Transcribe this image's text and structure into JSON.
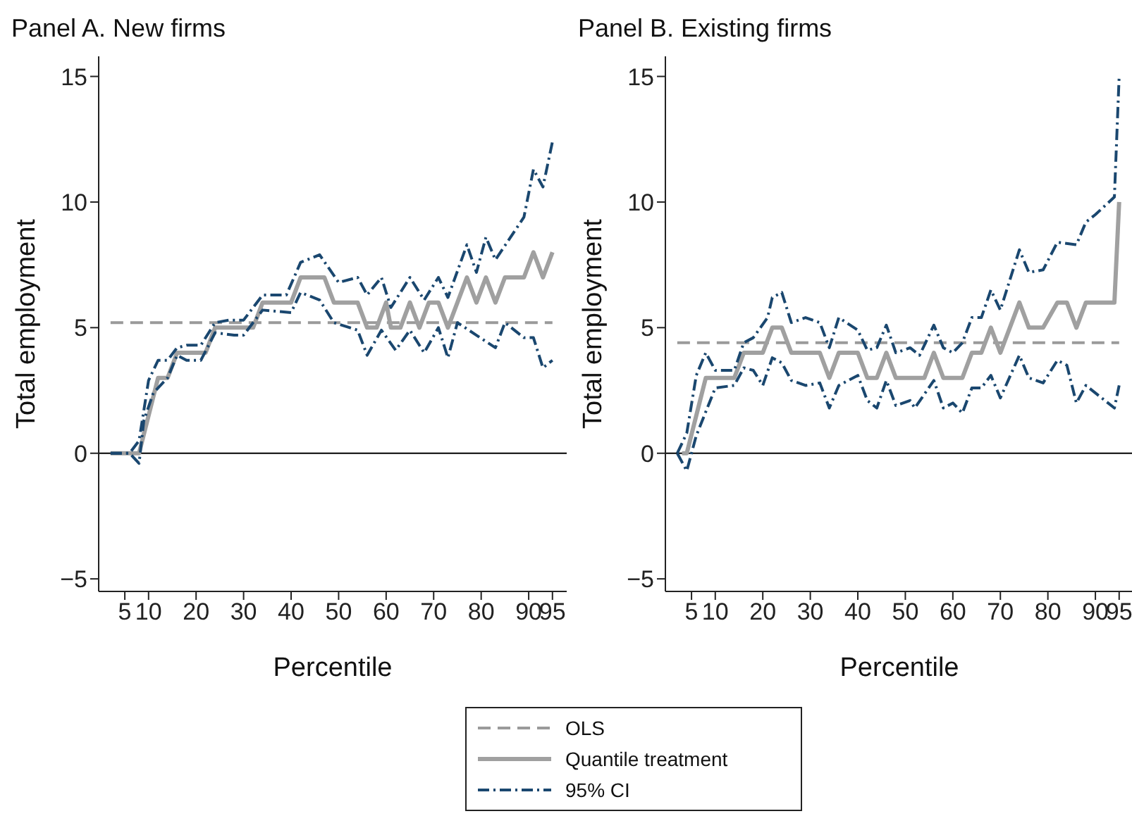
{
  "chart_data": [
    {
      "type": "line",
      "title": "Panel A. New firms",
      "xlabel": "Percentile",
      "ylabel": "Total employment",
      "xlim": [
        -0.5,
        98
      ],
      "xticks": [
        5,
        10,
        20,
        30,
        40,
        50,
        60,
        70,
        80,
        90,
        95
      ],
      "ylim": [
        -5.5,
        15.8
      ],
      "yticks": [
        -5,
        0,
        5,
        10,
        15
      ],
      "legend": "bottom",
      "marker": "none",
      "ref_lines": [
        {
          "axis": "y",
          "value": 0,
          "color": "#000000",
          "line_style": "solid"
        }
      ],
      "series": [
        {
          "name": "OLS",
          "color": "#9a9a9a",
          "line_style": "dashed",
          "x": [
            2,
            95
          ],
          "values": [
            5.2,
            5.2
          ]
        },
        {
          "name": "Quantile treatment",
          "color": "#a0a0a0",
          "line_style": "solid",
          "x": [
            2,
            8,
            12,
            14,
            16,
            22,
            24,
            32,
            34,
            40,
            42,
            47,
            49,
            54,
            56,
            58,
            60,
            61,
            63,
            65,
            67,
            69,
            71,
            73,
            77,
            79,
            81,
            83,
            85,
            89,
            91,
            93,
            95
          ],
          "values": [
            0,
            0,
            3,
            3,
            4,
            4,
            5,
            5,
            6,
            6,
            7,
            7,
            6,
            6,
            5,
            5,
            6,
            5,
            5,
            6,
            5,
            6,
            6,
            5,
            7,
            6,
            7,
            6,
            7,
            7,
            8,
            7,
            8
          ]
        },
        {
          "name": "95% CI",
          "color": "#1a476f",
          "line_style": "dashdot",
          "x": [
            2,
            6,
            8,
            10,
            12,
            14,
            16,
            18,
            21,
            24,
            27,
            30,
            34,
            39,
            42,
            46,
            50,
            54,
            56,
            59,
            61,
            65,
            68,
            71,
            73,
            77,
            79,
            81,
            83,
            89,
            91,
            93,
            95
          ],
          "values": [
            0,
            0,
            0.5,
            2.9,
            3.7,
            3.7,
            4.2,
            4.3,
            4.3,
            5.2,
            5.3,
            5.3,
            6.3,
            6.3,
            7.6,
            7.9,
            6.8,
            7.0,
            6.3,
            7.0,
            5.8,
            7.0,
            6.1,
            7.0,
            6.2,
            8.3,
            7.2,
            8.6,
            7.7,
            9.4,
            11.3,
            10.6,
            12.4
          ]
        },
        {
          "color": "#1a476f",
          "line_style": "dashdot",
          "x": [
            2,
            6,
            8,
            9,
            11,
            14,
            16,
            18,
            21,
            24,
            28,
            30,
            34,
            40,
            42,
            46,
            49,
            54,
            56,
            59,
            62,
            65,
            68,
            71,
            73,
            75,
            79,
            83,
            85,
            89,
            91,
            93,
            95
          ],
          "values": [
            0,
            0,
            -0.4,
            1.3,
            2.4,
            3.0,
            3.9,
            3.7,
            3.7,
            4.8,
            4.7,
            4.7,
            5.7,
            5.6,
            6.4,
            6.1,
            5.2,
            4.9,
            3.9,
            4.9,
            4.1,
            4.9,
            4.0,
            5.0,
            3.8,
            5.2,
            4.7,
            4.2,
            5.2,
            4.6,
            4.6,
            3.4,
            3.7
          ]
        }
      ]
    },
    {
      "type": "line",
      "title": "Panel B. Existing firms",
      "xlabel": "Percentile",
      "ylabel": "Total employment",
      "xlim": [
        -0.5,
        98
      ],
      "xticks": [
        5,
        10,
        20,
        30,
        40,
        50,
        60,
        70,
        80,
        90,
        95
      ],
      "ylim": [
        -5.5,
        15.8
      ],
      "yticks": [
        -5,
        0,
        5,
        10,
        15
      ],
      "marker": "none",
      "ref_lines": [
        {
          "axis": "y",
          "value": 0,
          "color": "#000000",
          "line_style": "solid"
        }
      ],
      "series": [
        {
          "color": "#9a9a9a",
          "line_style": "dashed",
          "x": [
            2,
            95
          ],
          "values": [
            4.4,
            4.4
          ]
        },
        {
          "color": "#a0a0a0",
          "line_style": "solid",
          "x": [
            3,
            4,
            8,
            14,
            16,
            20,
            22,
            24,
            26,
            32,
            34,
            36,
            40,
            42,
            44,
            46,
            48,
            54,
            56,
            58,
            62,
            64,
            66,
            68,
            70,
            74,
            76,
            79,
            82,
            84,
            86,
            88,
            94,
            95
          ],
          "values": [
            0,
            0,
            3,
            3,
            4,
            4,
            5,
            5,
            4,
            4,
            3,
            4,
            4,
            3,
            3,
            4,
            3,
            3,
            4,
            3,
            3,
            4,
            4,
            5,
            4,
            6,
            5,
            5,
            6,
            6,
            5,
            6,
            6,
            10
          ]
        },
        {
          "color": "#1a476f",
          "line_style": "dashdot",
          "x": [
            2,
            4,
            6,
            8,
            10,
            14,
            16,
            18,
            21,
            22,
            24,
            26,
            29,
            32,
            34,
            36,
            40,
            42,
            44,
            46,
            48,
            51,
            53,
            56,
            58,
            60,
            62,
            64,
            66,
            68,
            70,
            74,
            76,
            79,
            82,
            86,
            88,
            90,
            94,
            95
          ],
          "values": [
            0,
            0.8,
            3.1,
            4.0,
            3.3,
            3.3,
            4.4,
            4.6,
            5.4,
            6.2,
            6.4,
            5.2,
            5.4,
            5.2,
            4.2,
            5.4,
            4.9,
            4.1,
            4.2,
            5.1,
            4.0,
            4.2,
            3.9,
            5.1,
            4.2,
            4.0,
            4.4,
            5.4,
            5.4,
            6.5,
            5.7,
            8.1,
            7.2,
            7.3,
            8.4,
            8.3,
            9.2,
            9.5,
            10.2,
            15.0
          ]
        },
        {
          "color": "#1a476f",
          "line_style": "dashdot",
          "x": [
            2,
            4,
            6,
            10,
            14,
            16,
            18,
            20,
            22,
            24,
            26,
            29,
            32,
            34,
            36,
            40,
            42,
            44,
            46,
            48,
            51,
            52,
            56,
            58,
            60,
            62,
            64,
            66,
            68,
            70,
            74,
            76,
            79,
            82,
            84,
            86,
            88,
            90,
            94,
            95
          ],
          "values": [
            0,
            -0.7,
            0.7,
            2.6,
            2.7,
            3.4,
            3.3,
            2.7,
            3.8,
            3.6,
            2.9,
            2.7,
            2.8,
            1.8,
            2.7,
            3.1,
            2.1,
            1.8,
            2.9,
            1.9,
            2.1,
            1.8,
            2.9,
            1.8,
            2.0,
            1.6,
            2.6,
            2.6,
            3.1,
            2.2,
            3.9,
            3.0,
            2.8,
            3.7,
            3.5,
            2.0,
            2.7,
            2.4,
            1.8,
            2.7
          ]
        }
      ]
    }
  ]
}
